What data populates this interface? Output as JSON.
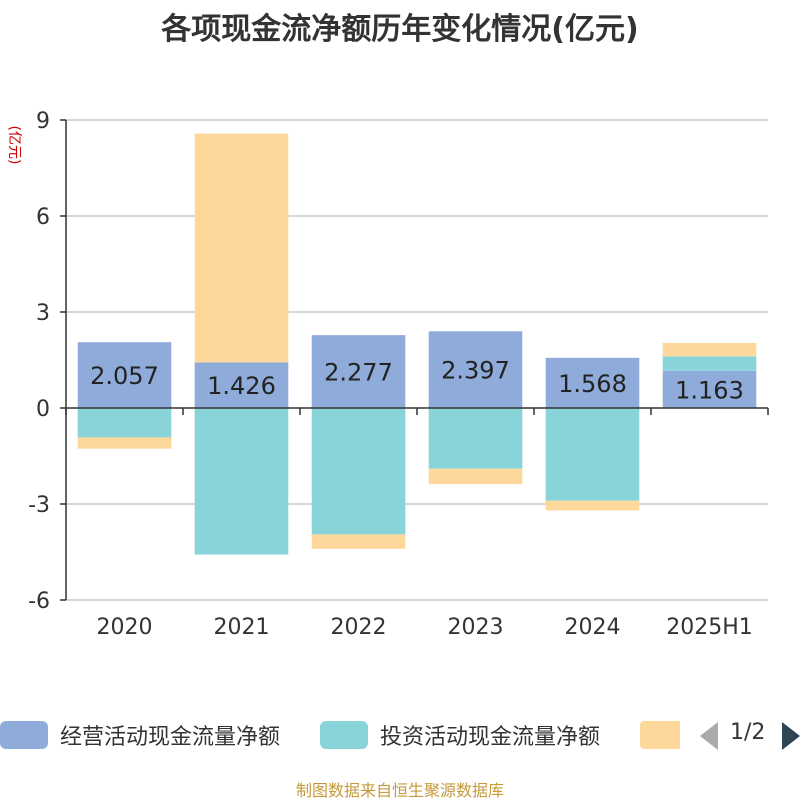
{
  "title": "各项现金流净额历年变化情况(亿元)",
  "y_unit_label": "(亿元)",
  "source": "制图数据来自恒生聚源数据库",
  "legend": {
    "items": [
      {
        "label": "经营活动现金流量净额",
        "color": "#8fabd9"
      },
      {
        "label": "投资活动现金流量净额",
        "color": "#89d4d8"
      },
      {
        "label": "",
        "color": "#fdd89a"
      }
    ],
    "pager": "1/2"
  },
  "chart_data": {
    "type": "bar",
    "stacked": true,
    "categories": [
      "2020",
      "2021",
      "2022",
      "2023",
      "2024",
      "2025H1"
    ],
    "ylim": [
      -6,
      9
    ],
    "yticks": [
      9,
      6,
      3,
      0,
      -3,
      -6
    ],
    "grid": true,
    "legend_position": "bottom",
    "series": [
      {
        "name": "经营活动现金流量净额",
        "color": "#8fabd9",
        "values": [
          2.057,
          1.426,
          2.277,
          2.397,
          1.568,
          1.163
        ],
        "show_labels": true
      },
      {
        "name": "投资活动现金流量净额",
        "color": "#89d4d8",
        "values": [
          -0.92,
          -4.58,
          -3.95,
          -1.9,
          -2.9,
          0.45
        ],
        "show_labels": false
      },
      {
        "color": "#fdd89a",
        "values": [
          -0.35,
          7.15,
          -0.45,
          -0.48,
          -0.3,
          0.42
        ],
        "show_labels": false
      }
    ]
  }
}
